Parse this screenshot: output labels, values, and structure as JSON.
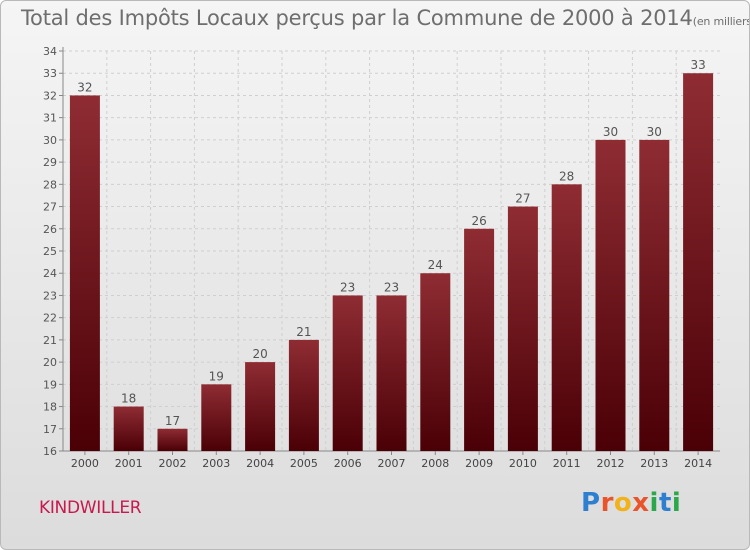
{
  "title": "Total des Impôts Locaux perçus par la Commune de 2000 à 2014",
  "unit": "(en milliers d'€)",
  "commune": "KINDWILLER",
  "brand": {
    "letters": [
      "P",
      "r",
      "o",
      "x",
      "i",
      "t",
      "i"
    ],
    "colors": [
      "#2f7fd0",
      "#e9542a",
      "#f2b21b",
      "#e9542a",
      "#2aa84a",
      "#2f7fd0",
      "#2aa84a"
    ]
  },
  "chart_data": {
    "type": "bar",
    "categories": [
      "2000",
      "2001",
      "2002",
      "2003",
      "2004",
      "2005",
      "2006",
      "2007",
      "2008",
      "2009",
      "2010",
      "2011",
      "2012",
      "2013",
      "2014"
    ],
    "values": [
      32,
      18,
      17,
      19,
      20,
      21,
      23,
      23,
      24,
      26,
      27,
      28,
      30,
      30,
      33
    ],
    "ylim": [
      16,
      34
    ],
    "yticks": [
      16,
      17,
      18,
      19,
      20,
      21,
      22,
      23,
      24,
      25,
      26,
      27,
      28,
      29,
      30,
      31,
      32,
      33,
      34
    ],
    "grid": true,
    "bar_color": "#7d1d24",
    "xlabel": "",
    "ylabel": ""
  }
}
